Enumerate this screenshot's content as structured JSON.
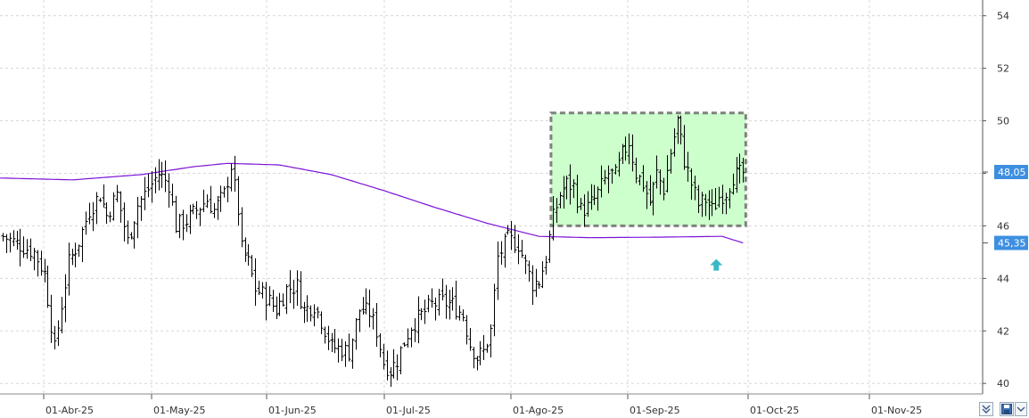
{
  "chart_data": {
    "type": "ohlc-bar",
    "title": "",
    "xlabel": "",
    "ylabel": "",
    "ylim": [
      39.6,
      54.6
    ],
    "y_ticks": [
      "40",
      "42",
      "44",
      "46",
      "48",
      "50",
      "52",
      "54"
    ],
    "x_ticks": [
      "01-Abr-25",
      "01-May-25",
      "01-Jun-25",
      "01-Jul-25",
      "01-Ago-25",
      "01-Sep-25",
      "01-Oct-25",
      "01-Nov-25"
    ],
    "grid": true,
    "last_price_label": "48,05",
    "last_price": 48.05,
    "moving_average_label": "45,35",
    "moving_average_value": 45.35,
    "colors": {
      "bars": "#000000",
      "moving_average": "#7b12d8",
      "price_label_bg": "#3d8fe0",
      "ma_label_bg": "#3d8fe0",
      "range_fill": "#ccffcc",
      "range_border": "#808080",
      "arrow": "#3bb8c8",
      "grid": "#d8d8d8"
    },
    "range_box": {
      "y_low": 46.0,
      "y_high": 50.3,
      "from_bar": 159,
      "to_bar": 214
    },
    "arrow_marker": {
      "at_bar": 206,
      "y": 44.5,
      "direction": "up"
    },
    "moving_average_points": [
      [
        0,
        47.82
      ],
      [
        20,
        47.75
      ],
      [
        40,
        47.95
      ],
      [
        55,
        48.25
      ],
      [
        65,
        48.38
      ],
      [
        80,
        48.32
      ],
      [
        95,
        47.95
      ],
      [
        110,
        47.35
      ],
      [
        125,
        46.7
      ],
      [
        140,
        46.1
      ],
      [
        155,
        45.6
      ],
      [
        170,
        45.55
      ],
      [
        190,
        45.57
      ],
      [
        208,
        45.6
      ],
      [
        214,
        45.35
      ]
    ],
    "anchors": [
      [
        0,
        45.6
      ],
      [
        9,
        45.0
      ],
      [
        12,
        44.2
      ],
      [
        15,
        41.3
      ],
      [
        17,
        43.0
      ],
      [
        19,
        44.6
      ],
      [
        22,
        45.4
      ],
      [
        25,
        46.6
      ],
      [
        28,
        47.2
      ],
      [
        30,
        46.4
      ],
      [
        33,
        47.2
      ],
      [
        36,
        45.4
      ],
      [
        39,
        46.8
      ],
      [
        42,
        47.4
      ],
      [
        45,
        48.0
      ],
      [
        48,
        47.6
      ],
      [
        50,
        46.0
      ],
      [
        53,
        46.2
      ],
      [
        56,
        46.6
      ],
      [
        59,
        47.0
      ],
      [
        61,
        46.6
      ],
      [
        64,
        47.2
      ],
      [
        66,
        48.3
      ],
      [
        68,
        46.6
      ],
      [
        69,
        45.1
      ],
      [
        71,
        44.6
      ],
      [
        73,
        43.6
      ],
      [
        76,
        43.3
      ],
      [
        79,
        42.8
      ],
      [
        82,
        43.6
      ],
      [
        85,
        43.7
      ],
      [
        87,
        42.8
      ],
      [
        90,
        43.0
      ],
      [
        92,
        42.4
      ],
      [
        95,
        41.4
      ],
      [
        98,
        41.3
      ],
      [
        100,
        41.2
      ],
      [
        103,
        42.8
      ],
      [
        106,
        42.7
      ],
      [
        108,
        42.0
      ],
      [
        110,
        40.8
      ],
      [
        112,
        40.5
      ],
      [
        114,
        40.9
      ],
      [
        116,
        41.6
      ],
      [
        118,
        42.2
      ],
      [
        121,
        42.6
      ],
      [
        124,
        43.0
      ],
      [
        127,
        43.1
      ],
      [
        130,
        43.0
      ],
      [
        133,
        42.6
      ],
      [
        135,
        41.5
      ],
      [
        137,
        41.0
      ],
      [
        139,
        41.2
      ],
      [
        141,
        42.0
      ],
      [
        143,
        44.8
      ],
      [
        146,
        45.5
      ],
      [
        149,
        45.3
      ],
      [
        151,
        44.5
      ],
      [
        153,
        43.8
      ],
      [
        155,
        43.9
      ],
      [
        157,
        44.8
      ],
      [
        159,
        46.3
      ],
      [
        161,
        47.2
      ],
      [
        163,
        47.6
      ],
      [
        165,
        47.5
      ],
      [
        167,
        46.6
      ],
      [
        169,
        46.7
      ],
      [
        171,
        47.0
      ],
      [
        173,
        47.5
      ],
      [
        175,
        48.0
      ],
      [
        177,
        47.9
      ],
      [
        179,
        48.7
      ],
      [
        181,
        49.2
      ],
      [
        183,
        48.0
      ],
      [
        185,
        47.6
      ],
      [
        187,
        46.9
      ],
      [
        189,
        48.0
      ],
      [
        191,
        47.4
      ],
      [
        193,
        48.8
      ],
      [
        195,
        50.0
      ],
      [
        197,
        48.5
      ],
      [
        199,
        47.6
      ],
      [
        201,
        46.8
      ],
      [
        203,
        47.0
      ],
      [
        205,
        46.6
      ],
      [
        207,
        47.1
      ],
      [
        209,
        47.3
      ],
      [
        211,
        47.9
      ],
      [
        214,
        48.0
      ]
    ]
  }
}
